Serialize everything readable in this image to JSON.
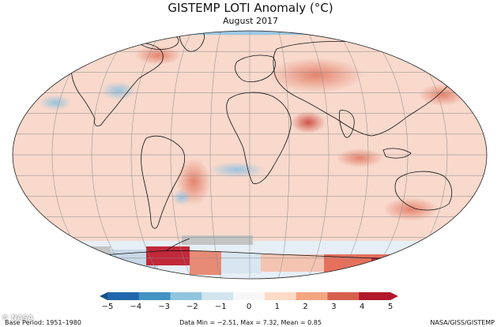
{
  "title": "GISTEMP LOTI Anomaly (°C)",
  "subtitle": "August 2017",
  "colorbar": {
    "ticks": [
      "−5",
      "−4",
      "−3",
      "−2",
      "−1",
      "0",
      "1",
      "2",
      "3",
      "4",
      "5"
    ],
    "min": -5,
    "max": 5,
    "colors": [
      "#2166ac",
      "#4393c3",
      "#92c5de",
      "#d1e5f0",
      "#f7f7f7",
      "#fddbc7",
      "#f4a582",
      "#d6604d",
      "#b2182b"
    ]
  },
  "footer": {
    "base_period": "Base Period: 1951–1980",
    "stats": "Data Min = −2.51, Max = 7.32, Mean = 0.85",
    "source": "NASA/GISS/GISTEMP"
  },
  "watermark": "© NASA"
}
